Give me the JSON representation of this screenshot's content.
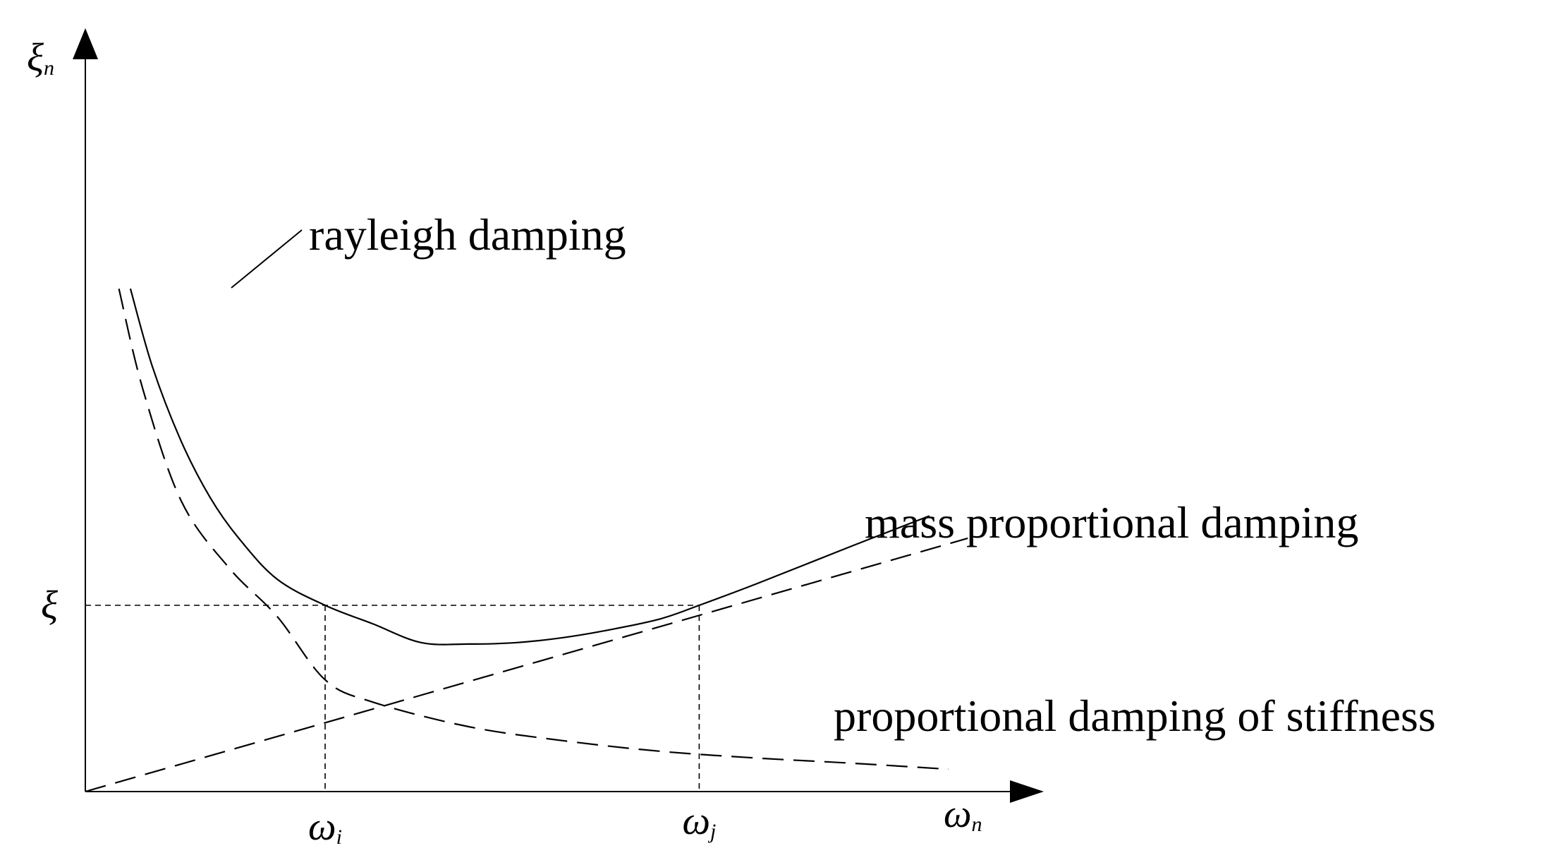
{
  "chart_data": {
    "type": "line",
    "title": "",
    "xlabel": {
      "symbol": "ω",
      "subscript": "n"
    },
    "ylabel": {
      "symbol": "ξ",
      "subscript": "n"
    },
    "xlim": [
      0,
      1.0
    ],
    "ylim": [
      0,
      0.68
    ],
    "grid": false,
    "ticks": {
      "x": [
        {
          "value": 0.25,
          "symbol": "ω",
          "subscript": "i"
        },
        {
          "value": 0.64,
          "symbol": "ω",
          "subscript": "j"
        }
      ],
      "y": [
        {
          "value": 0.25,
          "symbol": "ξ",
          "subscript": ""
        }
      ]
    },
    "series": [
      {
        "name": "rayleigh damping",
        "style": "solid",
        "color": "#000000",
        "x": [
          0.047,
          0.07,
          0.1,
          0.13,
          0.16,
          0.2,
          0.25,
          0.3,
          0.35,
          0.4,
          0.45,
          0.5,
          0.55,
          0.6,
          0.64,
          0.7,
          0.8,
          0.88
        ],
        "y": [
          0.675,
          0.57,
          0.47,
          0.395,
          0.34,
          0.285,
          0.25,
          0.225,
          0.2,
          0.198,
          0.2,
          0.207,
          0.218,
          0.232,
          0.25,
          0.279,
          0.33,
          0.37
        ]
      },
      {
        "name": "mass proportional damping",
        "style": "dashed",
        "color": "#000000",
        "x": [
          0,
          0.92
        ],
        "y": [
          0,
          0.34
        ]
      },
      {
        "name": "proportional damping of stiffness",
        "style": "dashed",
        "color": "#000000",
        "x": [
          0.035,
          0.06,
          0.1,
          0.15,
          0.2,
          0.25,
          0.3,
          0.4,
          0.5,
          0.6,
          0.7,
          0.8,
          0.9
        ],
        "y": [
          0.675,
          0.54,
          0.39,
          0.3,
          0.235,
          0.15,
          0.12,
          0.087,
          0.068,
          0.054,
          0.045,
          0.038,
          0.03
        ]
      }
    ],
    "reference_lines": {
      "horizontal_y": 0.25,
      "vertical_x": [
        0.25,
        0.64
      ],
      "style": "dashed"
    },
    "annotations": [
      {
        "text": "rayleigh damping",
        "target_series": "rayleigh damping"
      },
      {
        "text": "mass proportional damping"
      },
      {
        "text": "proportional damping of stiffness"
      }
    ]
  }
}
